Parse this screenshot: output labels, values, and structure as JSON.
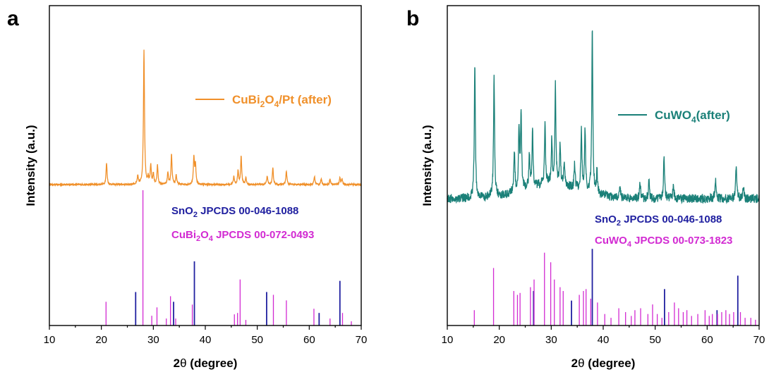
{
  "chart_data": [
    {
      "type": "line",
      "panel": "a",
      "xlabel": "2θ (degree)",
      "ylabel": "Intensity (a.u.)",
      "xlim": [
        10,
        70
      ],
      "xticks": [
        10,
        20,
        30,
        40,
        50,
        60,
        70
      ],
      "legend": {
        "text": "CuBi₂O₄/Pt (after)",
        "placement": "top-right"
      },
      "pattern": {
        "name": "CuBi₂O₄/Pt (after)",
        "color": "#f0902a",
        "baseline": 0.31,
        "peaks": [
          [
            21.0,
            0.16
          ],
          [
            27.0,
            0.06
          ],
          [
            28.2,
            1.0
          ],
          [
            29.0,
            0.05
          ],
          [
            29.5,
            0.14
          ],
          [
            30.0,
            0.08
          ],
          [
            30.8,
            0.14
          ],
          [
            32.8,
            0.09
          ],
          [
            33.5,
            0.22
          ],
          [
            34.4,
            0.07
          ],
          [
            37.8,
            0.2
          ],
          [
            38.1,
            0.15
          ],
          [
            45.5,
            0.06
          ],
          [
            46.3,
            0.1
          ],
          [
            46.9,
            0.21
          ],
          [
            47.8,
            0.05
          ],
          [
            51.9,
            0.06
          ],
          [
            53.0,
            0.12
          ],
          [
            55.6,
            0.1
          ],
          [
            61.0,
            0.06
          ],
          [
            62.3,
            0.04
          ],
          [
            64.0,
            0.04
          ],
          [
            65.9,
            0.05
          ],
          [
            66.3,
            0.04
          ]
        ]
      },
      "references": [
        {
          "name": "SnO₂ JPCDS 00-046-1088",
          "color": "#2020a0",
          "lines": [
            [
              26.6,
              0.24
            ],
            [
              33.9,
              0.17
            ],
            [
              37.9,
              0.46
            ],
            [
              51.8,
              0.24
            ],
            [
              61.9,
              0.09
            ],
            [
              65.9,
              0.32
            ]
          ]
        },
        {
          "name": "CuBi₂O₄ JPCDS 00-072-0493",
          "color": "#d22ad2",
          "lines": [
            [
              20.9,
              0.17
            ],
            [
              28.0,
              0.97
            ],
            [
              29.7,
              0.07
            ],
            [
              30.7,
              0.13
            ],
            [
              32.5,
              0.05
            ],
            [
              33.3,
              0.21
            ],
            [
              34.3,
              0.05
            ],
            [
              37.5,
              0.15
            ],
            [
              45.6,
              0.08
            ],
            [
              46.2,
              0.09
            ],
            [
              46.7,
              0.33
            ],
            [
              47.8,
              0.04
            ],
            [
              53.1,
              0.22
            ],
            [
              55.6,
              0.18
            ],
            [
              60.9,
              0.12
            ],
            [
              64.0,
              0.05
            ],
            [
              66.4,
              0.09
            ],
            [
              68.1,
              0.03
            ]
          ]
        }
      ]
    },
    {
      "type": "line",
      "panel": "b",
      "xlabel": "2θ (degree)",
      "ylabel": "Intensity (a.u.)",
      "xlim": [
        10,
        70
      ],
      "xticks": [
        10,
        20,
        30,
        40,
        50,
        60,
        70
      ],
      "legend": {
        "text": "CuWO₄(after)",
        "placement": "top-right"
      },
      "pattern": {
        "name": "CuWO₄(after)",
        "color": "#1a8078",
        "baseline": 0.42,
        "peaks": [
          [
            15.3,
            0.48
          ],
          [
            19.0,
            0.42
          ],
          [
            22.9,
            0.15
          ],
          [
            23.8,
            0.22
          ],
          [
            24.2,
            0.27
          ],
          [
            25.8,
            0.12
          ],
          [
            26.4,
            0.2
          ],
          [
            28.8,
            0.22
          ],
          [
            30.1,
            0.15
          ],
          [
            30.8,
            0.35
          ],
          [
            31.7,
            0.15
          ],
          [
            32.5,
            0.08
          ],
          [
            34.5,
            0.08
          ],
          [
            35.8,
            0.21
          ],
          [
            36.5,
            0.22
          ],
          [
            37.9,
            0.58
          ],
          [
            38.8,
            0.08
          ],
          [
            43.2,
            0.04
          ],
          [
            47.1,
            0.06
          ],
          [
            48.8,
            0.06
          ],
          [
            51.7,
            0.15
          ],
          [
            53.5,
            0.05
          ],
          [
            61.6,
            0.07
          ],
          [
            65.6,
            0.13
          ],
          [
            67.0,
            0.04
          ]
        ]
      },
      "references": [
        {
          "name": "SnO₂ JPCDS 00-046-1088",
          "color": "#2020a0",
          "lines": [
            [
              26.6,
              0.18
            ],
            [
              33.9,
              0.13
            ],
            [
              37.9,
              0.4
            ],
            [
              51.8,
              0.19
            ],
            [
              61.9,
              0.08
            ],
            [
              65.9,
              0.26
            ]
          ]
        },
        {
          "name": "CuWO₄ JPCDS 00-073-1823",
          "color": "#d22ad2",
          "lines": [
            [
              15.2,
              0.08
            ],
            [
              18.9,
              0.3
            ],
            [
              22.8,
              0.18
            ],
            [
              23.5,
              0.16
            ],
            [
              24.0,
              0.17
            ],
            [
              26.0,
              0.2
            ],
            [
              26.7,
              0.24
            ],
            [
              28.7,
              0.38
            ],
            [
              29.9,
              0.33
            ],
            [
              30.6,
              0.24
            ],
            [
              31.7,
              0.2
            ],
            [
              32.3,
              0.18
            ],
            [
              35.4,
              0.16
            ],
            [
              36.2,
              0.18
            ],
            [
              36.7,
              0.19
            ],
            [
              37.6,
              0.14
            ],
            [
              38.9,
              0.12
            ],
            [
              40.3,
              0.06
            ],
            [
              41.5,
              0.04
            ],
            [
              43.0,
              0.09
            ],
            [
              44.3,
              0.07
            ],
            [
              45.4,
              0.05
            ],
            [
              46.1,
              0.08
            ],
            [
              47.2,
              0.09
            ],
            [
              48.6,
              0.06
            ],
            [
              49.5,
              0.11
            ],
            [
              50.4,
              0.06
            ],
            [
              51.3,
              0.04
            ],
            [
              52.6,
              0.07
            ],
            [
              53.7,
              0.12
            ],
            [
              54.5,
              0.09
            ],
            [
              55.4,
              0.07
            ],
            [
              56.1,
              0.08
            ],
            [
              57.0,
              0.05
            ],
            [
              58.2,
              0.06
            ],
            [
              59.6,
              0.08
            ],
            [
              60.4,
              0.05
            ],
            [
              61.0,
              0.06
            ],
            [
              62.0,
              0.06
            ],
            [
              62.8,
              0.07
            ],
            [
              63.6,
              0.08
            ],
            [
              64.3,
              0.06
            ],
            [
              65.1,
              0.07
            ],
            [
              66.4,
              0.07
            ],
            [
              67.3,
              0.04
            ],
            [
              68.4,
              0.04
            ],
            [
              69.3,
              0.03
            ]
          ]
        }
      ]
    }
  ],
  "panels": [
    {
      "letter": "a",
      "ylabel": "Intensity (a.u.)",
      "xlabel_main": "2",
      "xlabel_theta": "θ",
      "xlabel_rest": " (degree)",
      "legend": {
        "base": "CuBi",
        "sub1": "2",
        "mid": "O",
        "sub2": "4",
        "rest": "/Pt (after)"
      },
      "ref1": {
        "base": "SnO",
        "sub": "2",
        "rest": "  JPCDS 00-046-1088"
      },
      "ref2": {
        "base": "CuBi",
        "sub1": "2",
        "mid": "O",
        "sub2": "4",
        "rest": "  JPCDS 00-072-0493"
      }
    },
    {
      "letter": "b",
      "ylabel": "Intensity (a.u.)",
      "xlabel_main": "2",
      "xlabel_theta": "θ",
      "xlabel_rest": " (degree)",
      "legend": {
        "base": "CuWO",
        "sub": "4",
        "rest": "(after)"
      },
      "ref1": {
        "base": "SnO",
        "sub": "2",
        "rest": "  JPCDS 00-046-1088"
      },
      "ref2": {
        "base": "CuWO",
        "sub": "4",
        "rest": "  JPCDS 00-073-1823"
      }
    }
  ]
}
